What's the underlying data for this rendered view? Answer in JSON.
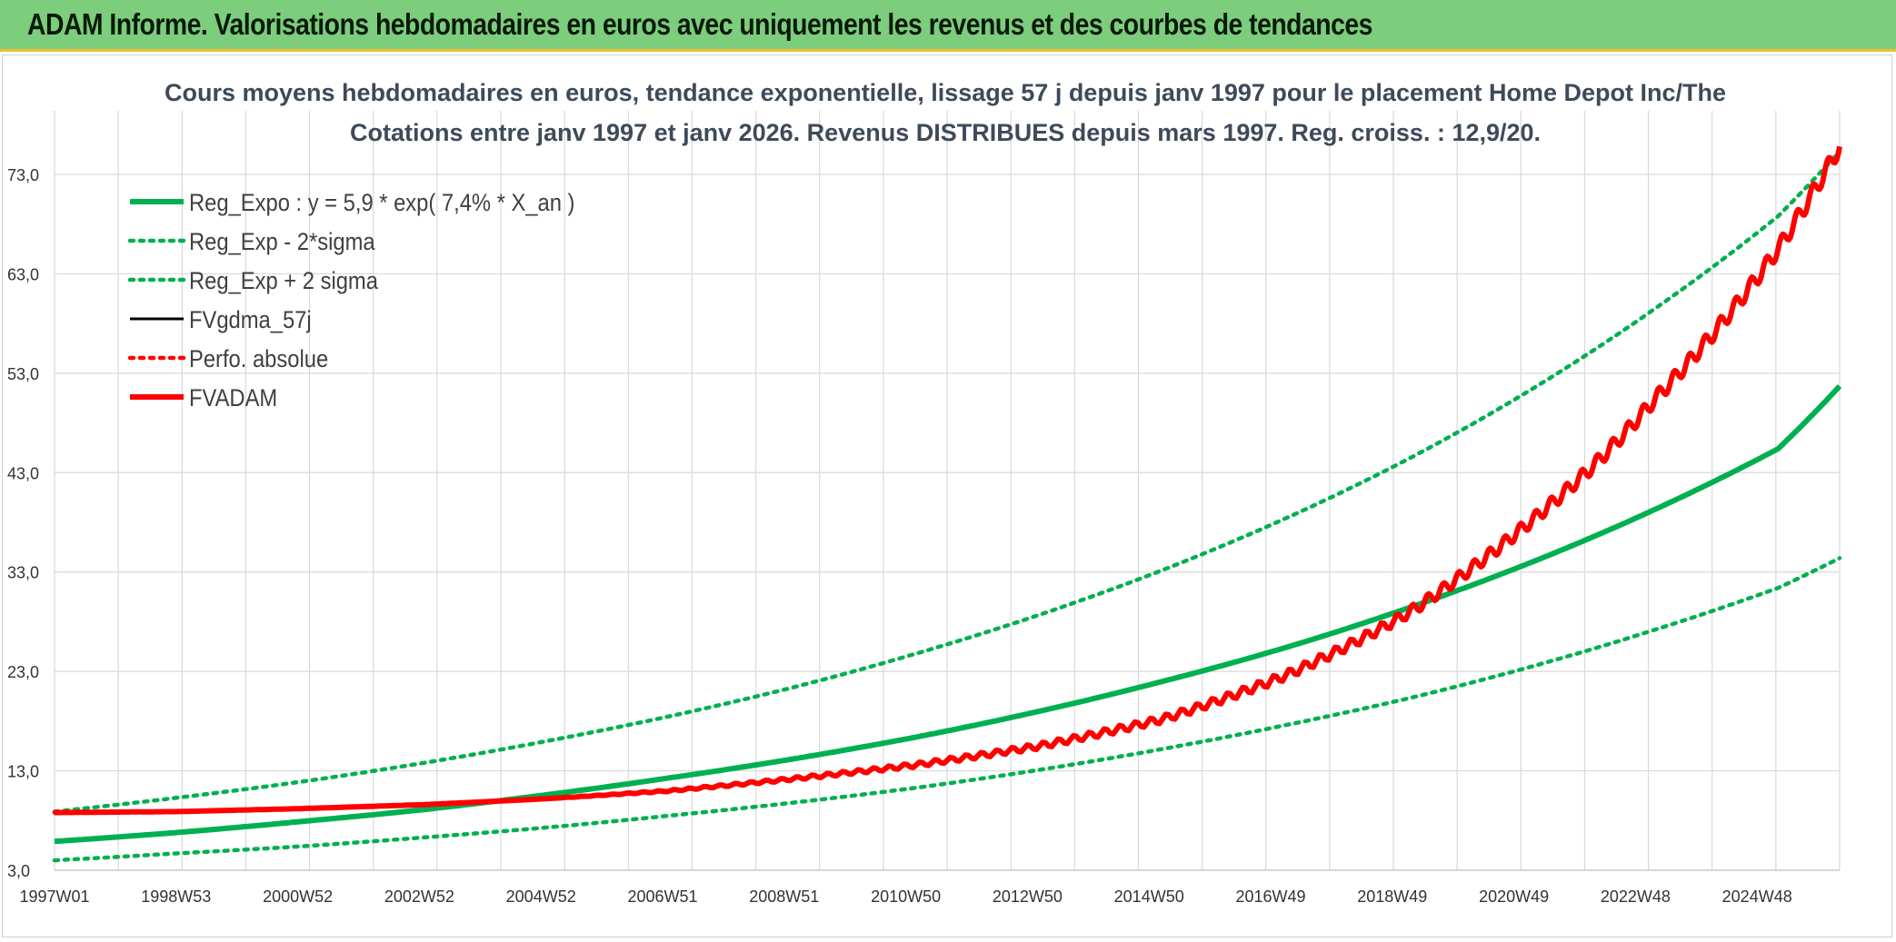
{
  "banner": {
    "title": "ADAM Informe. Valorisations hebdomadaires en euros avec uniquement les revenus et des courbes de tendances"
  },
  "colors": {
    "banner_bg": "#7ccd7c",
    "green": "#00b050",
    "red": "#ff0000",
    "black": "#000000",
    "grid": "#d9d9d9"
  },
  "chart_data": {
    "type": "line",
    "title_lines": [
      "Cours moyens hebdomadaires en euros, tendance exponentielle, lissage 57 j depuis janv 1997 pour le placement Home Depot Inc/The",
      "Cotations entre janv 1997 et janv 2026. Revenus DISTRIBUES depuis mars 1997. Reg. croiss. : 12,9/20."
    ],
    "x_tick_labels": [
      "1997W01",
      "1998W53",
      "2000W52",
      "2002W52",
      "2004W52",
      "2006W51",
      "2008W51",
      "2010W50",
      "2012W50",
      "2014W50",
      "2016W49",
      "2018W49",
      "2020W49",
      "2022W48",
      "2024W48"
    ],
    "y_tick_labels": [
      "3,0",
      "13,0",
      "23,0",
      "33,0",
      "43,0",
      "53,0",
      "63,0",
      "73,0"
    ],
    "ylim": [
      3,
      73
    ],
    "xlim": [
      1997.0,
      2026.0
    ],
    "grid": true,
    "legend_position": "top-left",
    "legend": [
      {
        "label": "Reg_Expo : y = 5,9 * exp( 7,4% *  X_an )",
        "color": "#00b050",
        "style": "solid-thick"
      },
      {
        "label": "Reg_Exp - 2*sigma",
        "color": "#00b050",
        "style": "dotted"
      },
      {
        "label": "Reg_Exp + 2 sigma",
        "color": "#00b050",
        "style": "dotted"
      },
      {
        "label": "FVgdma_57j",
        "color": "#000000",
        "style": "solid"
      },
      {
        "label": "Perfo. absolue",
        "color": "#ff0000",
        "style": "dotted"
      },
      {
        "label": "FVADAM",
        "color": "#ff0000",
        "style": "solid-thick"
      }
    ],
    "series": [
      {
        "name": "Reg_Expo : y = 5,9 * exp( 7,4% *  X_an )",
        "x": [
          1997,
          1999,
          2001,
          2003,
          2005,
          2007,
          2009,
          2011,
          2013,
          2015,
          2017,
          2019,
          2021,
          2023,
          2025,
          2026
        ],
        "values": [
          5.9,
          6.8,
          7.9,
          9.1,
          10.6,
          12.3,
          14.2,
          16.4,
          19.0,
          22.0,
          25.4,
          29.4,
          34.0,
          39.3,
          45.4,
          51.7
        ]
      },
      {
        "name": "Reg_Exp - 2*sigma",
        "x": [
          1997,
          1999,
          2001,
          2003,
          2005,
          2007,
          2009,
          2011,
          2013,
          2015,
          2017,
          2019,
          2021,
          2023,
          2025,
          2026
        ],
        "values": [
          4.0,
          4.7,
          5.4,
          6.3,
          7.3,
          8.5,
          9.8,
          11.3,
          13.1,
          15.2,
          17.6,
          20.3,
          23.5,
          27.2,
          31.4,
          34.4
        ]
      },
      {
        "name": "Reg_Exp + 2 sigma",
        "x": [
          1997,
          1999,
          2001,
          2003,
          2005,
          2007,
          2009,
          2011,
          2013,
          2015,
          2017,
          2019,
          2021,
          2023,
          2025,
          2026
        ],
        "values": [
          8.9,
          10.3,
          11.9,
          13.8,
          16.0,
          18.5,
          21.4,
          24.8,
          28.7,
          33.2,
          38.4,
          44.4,
          51.4,
          59.5,
          68.8,
          75.3
        ]
      },
      {
        "name": "FVgdma_57j",
        "x": [
          1997,
          1999,
          2001,
          2003,
          2005,
          2007,
          2009,
          2011,
          2013,
          2015,
          2017,
          2019,
          2020,
          2021,
          2022,
          2023,
          2024,
          2025,
          2026
        ],
        "values": [
          8.8,
          8.9,
          9.2,
          9.6,
          10.2,
          11.0,
          12.2,
          13.6,
          15.5,
          18.2,
          22.6,
          28.9,
          33.3,
          38.2,
          43.7,
          50.4,
          57.4,
          65.5,
          75.8
        ]
      },
      {
        "name": "Perfo. absolue",
        "x": [
          1997,
          1999,
          2001,
          2003,
          2005,
          2007,
          2009,
          2011,
          2013,
          2015,
          2017,
          2019,
          2020,
          2021,
          2022,
          2023,
          2024,
          2025,
          2026
        ],
        "values": [
          8.8,
          8.9,
          9.2,
          9.6,
          10.2,
          11.0,
          12.2,
          13.6,
          15.5,
          18.2,
          22.6,
          28.9,
          33.3,
          38.2,
          43.7,
          50.4,
          57.4,
          65.5,
          75.8
        ]
      },
      {
        "name": "FVADAM",
        "x": [
          1997,
          1999,
          2001,
          2003,
          2005,
          2007,
          2009,
          2011,
          2013,
          2015,
          2017,
          2019,
          2020,
          2021,
          2022,
          2023,
          2024,
          2025,
          2026
        ],
        "values": [
          8.8,
          8.9,
          9.2,
          9.6,
          10.2,
          11.0,
          12.2,
          13.6,
          15.5,
          18.2,
          22.6,
          28.9,
          33.3,
          38.2,
          43.7,
          50.4,
          57.4,
          65.5,
          75.8
        ]
      }
    ]
  }
}
